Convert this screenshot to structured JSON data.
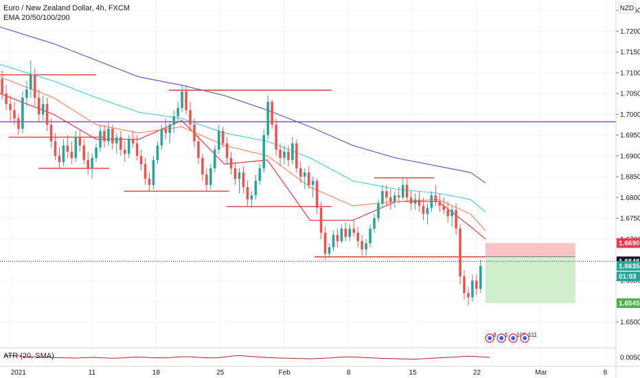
{
  "header": {
    "title": "Euro / New Zealand Dollar, 4h, FXCM",
    "indicator": "EMA 20/50/100/200",
    "atr_label": "ATR (20, SMA)",
    "currency": "NZD"
  },
  "colors": {
    "up": "#26a69a",
    "down": "#ef5350",
    "ema20": "#f23645",
    "ema50": "#ff8a65",
    "ema100": "#4dd0e1",
    "ema200": "#5b5fc7",
    "level": "#e53935",
    "hline": "#7e3fc9",
    "atr": "#b71c1c",
    "stop_zone": "#f9b9bb",
    "target_zone": "#c7ebc3",
    "grid": "#f0f3fa"
  },
  "chart_data": {
    "type": "candlestick",
    "timeframe": "4h",
    "ylim": [
      1.644,
      1.7275
    ],
    "price_ticks": [
      "1.72500",
      "1.72000",
      "1.71500",
      "1.71000",
      "1.70500",
      "1.70000",
      "1.69500",
      "1.69000",
      "1.68500",
      "1.68000",
      "1.67500",
      "1.67000",
      "1.66500",
      "1.66000",
      "1.65500",
      "1.65000"
    ],
    "date_ticks": [
      {
        "label": "2021",
        "t": 0
      },
      {
        "label": "11",
        "t": 38
      },
      {
        "label": "18",
        "t": 68
      },
      {
        "label": "25",
        "t": 98
      },
      {
        "label": "Feb",
        "t": 128
      },
      {
        "label": "8",
        "t": 158
      },
      {
        "label": "15",
        "t": 188
      },
      {
        "label": "22",
        "t": 218
      },
      {
        "label": "Mar",
        "t": 248
      },
      {
        "label": "8",
        "t": 278
      }
    ],
    "t_range": [
      -5,
      283
    ],
    "candles": [
      [
        1.7085,
        1.7105,
        1.7035,
        1.705
      ],
      [
        1.705,
        1.707,
        1.701,
        1.7025
      ],
      [
        1.7025,
        1.7045,
        1.6985,
        1.701
      ],
      [
        1.701,
        1.703,
        1.6975,
        1.699
      ],
      [
        1.699,
        1.7,
        1.695,
        1.6965
      ],
      [
        1.6965,
        1.7055,
        1.6955,
        1.704
      ],
      [
        1.704,
        1.708,
        1.702,
        1.706
      ],
      [
        1.706,
        1.713,
        1.704,
        1.7095
      ],
      [
        1.7095,
        1.711,
        1.702,
        1.704
      ],
      [
        1.704,
        1.706,
        1.698,
        1.7
      ],
      [
        1.7,
        1.7045,
        1.6985,
        1.7025
      ],
      [
        1.7025,
        1.704,
        1.696,
        1.6975
      ],
      [
        1.6975,
        1.699,
        1.692,
        1.6935
      ],
      [
        1.6935,
        1.6955,
        1.689,
        1.69
      ],
      [
        1.69,
        1.692,
        1.687,
        1.6885
      ],
      [
        1.6885,
        1.694,
        1.6875,
        1.6925
      ],
      [
        1.6925,
        1.695,
        1.6895,
        1.691
      ],
      [
        1.691,
        1.6935,
        1.688,
        1.6895
      ],
      [
        1.6895,
        1.696,
        1.6885,
        1.6945
      ],
      [
        1.6945,
        1.6965,
        1.691,
        1.6925
      ],
      [
        1.6925,
        1.694,
        1.688,
        1.689
      ],
      [
        1.689,
        1.691,
        1.6855,
        1.687
      ],
      [
        1.687,
        1.6905,
        1.6845,
        1.6895
      ],
      [
        1.6895,
        1.693,
        1.6885,
        1.692
      ],
      [
        1.692,
        1.6975,
        1.691,
        1.696
      ],
      [
        1.696,
        1.6975,
        1.692,
        1.6935
      ],
      [
        1.6935,
        1.698,
        1.6925,
        1.6965
      ],
      [
        1.6965,
        1.6975,
        1.6915,
        1.693
      ],
      [
        1.693,
        1.6955,
        1.6905,
        1.6945
      ],
      [
        1.6945,
        1.696,
        1.69,
        1.6915
      ],
      [
        1.6915,
        1.6935,
        1.6885,
        1.6905
      ],
      [
        1.6905,
        1.695,
        1.6895,
        1.694
      ],
      [
        1.694,
        1.696,
        1.692,
        1.693
      ],
      [
        1.693,
        1.695,
        1.689,
        1.69
      ],
      [
        1.69,
        1.6915,
        1.6865,
        1.688
      ],
      [
        1.688,
        1.6895,
        1.683,
        1.6845
      ],
      [
        1.6845,
        1.686,
        1.6815,
        1.683
      ],
      [
        1.683,
        1.69,
        1.682,
        1.689
      ],
      [
        1.689,
        1.6935,
        1.688,
        1.6925
      ],
      [
        1.6925,
        1.6975,
        1.6915,
        1.6965
      ],
      [
        1.6965,
        1.699,
        1.694,
        1.6955
      ],
      [
        1.6955,
        1.6985,
        1.693,
        1.6975
      ],
      [
        1.6975,
        1.701,
        1.6955,
        1.6995
      ],
      [
        1.6995,
        1.703,
        1.698,
        1.7015
      ],
      [
        1.7015,
        1.707,
        1.7005,
        1.7055
      ],
      [
        1.7055,
        1.707,
        1.7,
        1.701
      ],
      [
        1.701,
        1.703,
        1.696,
        1.6975
      ],
      [
        1.6975,
        1.699,
        1.692,
        1.6935
      ],
      [
        1.6935,
        1.695,
        1.688,
        1.6895
      ],
      [
        1.6895,
        1.6905,
        1.684,
        1.6855
      ],
      [
        1.6855,
        1.687,
        1.6815,
        1.683
      ],
      [
        1.683,
        1.688,
        1.682,
        1.687
      ],
      [
        1.687,
        1.6925,
        1.686,
        1.6915
      ],
      [
        1.6915,
        1.6975,
        1.6905,
        1.696
      ],
      [
        1.696,
        1.697,
        1.692,
        1.693
      ],
      [
        1.693,
        1.6945,
        1.688,
        1.6895
      ],
      [
        1.6895,
        1.691,
        1.6855,
        1.687
      ],
      [
        1.687,
        1.6885,
        1.683,
        1.6845
      ],
      [
        1.6845,
        1.687,
        1.681,
        1.686
      ],
      [
        1.686,
        1.6875,
        1.681,
        1.6825
      ],
      [
        1.6825,
        1.684,
        1.678,
        1.6795
      ],
      [
        1.6795,
        1.6815,
        1.6775,
        1.6805
      ],
      [
        1.6805,
        1.6855,
        1.6795,
        1.684
      ],
      [
        1.684,
        1.688,
        1.683,
        1.687
      ],
      [
        1.687,
        1.6965,
        1.686,
        1.695
      ],
      [
        1.695,
        1.7045,
        1.694,
        1.703
      ],
      [
        1.703,
        1.7035,
        1.6965,
        1.6975
      ],
      [
        1.6975,
        1.699,
        1.69,
        1.6915
      ],
      [
        1.6915,
        1.693,
        1.6875,
        1.6895
      ],
      [
        1.6895,
        1.6925,
        1.688,
        1.691
      ],
      [
        1.691,
        1.6925,
        1.6875,
        1.689
      ],
      [
        1.689,
        1.6945,
        1.688,
        1.693
      ],
      [
        1.693,
        1.694,
        1.686,
        1.687
      ],
      [
        1.687,
        1.6885,
        1.6835,
        1.685
      ],
      [
        1.685,
        1.687,
        1.682,
        1.686
      ],
      [
        1.686,
        1.6875,
        1.682,
        1.683
      ],
      [
        1.683,
        1.685,
        1.68,
        1.684
      ],
      [
        1.684,
        1.6845,
        1.676,
        1.6775
      ],
      [
        1.6775,
        1.679,
        1.67,
        1.6715
      ],
      [
        1.6715,
        1.673,
        1.665,
        1.6665
      ],
      [
        1.6665,
        1.669,
        1.6655,
        1.668
      ],
      [
        1.668,
        1.672,
        1.667,
        1.671
      ],
      [
        1.671,
        1.6725,
        1.668,
        1.6695
      ],
      [
        1.6695,
        1.6735,
        1.669,
        1.6725
      ],
      [
        1.6725,
        1.674,
        1.6695,
        1.6705
      ],
      [
        1.6705,
        1.6735,
        1.6695,
        1.6725
      ],
      [
        1.6725,
        1.6745,
        1.6705,
        1.6715
      ],
      [
        1.6715,
        1.673,
        1.668,
        1.6695
      ],
      [
        1.6695,
        1.671,
        1.666,
        1.6675
      ],
      [
        1.6675,
        1.67,
        1.666,
        1.669
      ],
      [
        1.669,
        1.6735,
        1.668,
        1.6725
      ],
      [
        1.6725,
        1.676,
        1.6715,
        1.675
      ],
      [
        1.675,
        1.6795,
        1.674,
        1.6785
      ],
      [
        1.6785,
        1.683,
        1.6775,
        1.6815
      ],
      [
        1.6815,
        1.683,
        1.678,
        1.68
      ],
      [
        1.68,
        1.682,
        1.677,
        1.679
      ],
      [
        1.679,
        1.6815,
        1.6775,
        1.6805
      ],
      [
        1.6805,
        1.6825,
        1.6785,
        1.68
      ],
      [
        1.68,
        1.6845,
        1.6795,
        1.683
      ],
      [
        1.683,
        1.6845,
        1.679,
        1.68
      ],
      [
        1.68,
        1.6815,
        1.677,
        1.6785
      ],
      [
        1.6785,
        1.681,
        1.677,
        1.6795
      ],
      [
        1.6795,
        1.6815,
        1.6765,
        1.678
      ],
      [
        1.678,
        1.68,
        1.6745,
        1.676
      ],
      [
        1.676,
        1.6785,
        1.6735,
        1.6775
      ],
      [
        1.6775,
        1.6815,
        1.6765,
        1.6805
      ],
      [
        1.6805,
        1.683,
        1.678,
        1.679
      ],
      [
        1.679,
        1.681,
        1.6765,
        1.678
      ],
      [
        1.678,
        1.68,
        1.676,
        1.677
      ],
      [
        1.677,
        1.679,
        1.674,
        1.6755
      ],
      [
        1.6755,
        1.678,
        1.673,
        1.677
      ],
      [
        1.677,
        1.6785,
        1.671,
        1.6725
      ],
      [
        1.6725,
        1.6735,
        1.659,
        1.661
      ],
      [
        1.661,
        1.6625,
        1.6555,
        1.657
      ],
      [
        1.657,
        1.6585,
        1.654,
        1.656
      ],
      [
        1.656,
        1.6615,
        1.655,
        1.66
      ],
      [
        1.66,
        1.6615,
        1.6565,
        1.658
      ],
      [
        1.658,
        1.665,
        1.657,
        1.6635
      ]
    ],
    "candle_t_start": -4,
    "candle_t_step": 1.912,
    "ema": [
      {
        "key": "ema20",
        "t": [
          -5,
          20,
          40,
          60,
          80,
          100,
          120,
          140,
          160,
          180,
          200,
          215,
          222
        ],
        "v": [
          1.705,
          1.7,
          1.694,
          1.694,
          1.6985,
          1.688,
          1.689,
          1.6745,
          1.6745,
          1.679,
          1.679,
          1.673,
          1.67
        ]
      },
      {
        "key": "ema50",
        "t": [
          -5,
          20,
          40,
          60,
          80,
          100,
          120,
          140,
          160,
          180,
          200,
          215,
          222
        ],
        "v": [
          1.709,
          1.704,
          1.6975,
          1.6955,
          1.697,
          1.6925,
          1.69,
          1.6825,
          1.678,
          1.679,
          1.6795,
          1.676,
          1.672
        ]
      },
      {
        "key": "ema100",
        "t": [
          -5,
          20,
          40,
          60,
          80,
          100,
          120,
          140,
          160,
          180,
          200,
          215,
          222
        ],
        "v": [
          1.712,
          1.708,
          1.704,
          1.7005,
          1.699,
          1.6955,
          1.6935,
          1.6895,
          1.684,
          1.682,
          1.681,
          1.6795,
          1.6765
        ]
      },
      {
        "key": "ema200",
        "t": [
          -5,
          20,
          40,
          60,
          80,
          100,
          120,
          140,
          160,
          180,
          200,
          215,
          222
        ],
        "v": [
          1.721,
          1.717,
          1.713,
          1.709,
          1.707,
          1.7045,
          1.701,
          1.697,
          1.6925,
          1.6895,
          1.6875,
          1.686,
          1.6835
        ]
      }
    ],
    "levels": [
      {
        "t0": -5,
        "t1": 40,
        "price": 1.7095
      },
      {
        "t0": -1,
        "t1": 44,
        "price": 1.6945
      },
      {
        "t0": 13,
        "t1": 46,
        "price": 1.687
      },
      {
        "t0": 53,
        "t1": 102,
        "price": 1.6815
      },
      {
        "t0": 74,
        "t1": 150,
        "price": 1.7058
      },
      {
        "t0": 101,
        "t1": 150,
        "price": 1.6778
      },
      {
        "t0": 142,
        "t1": 222,
        "price": 1.6657
      },
      {
        "t0": 170,
        "t1": 198,
        "price": 1.6847
      }
    ],
    "horizontal_line": 1.6982,
    "current_price_line": 1.66463,
    "position": {
      "t0": 222,
      "t1": 264,
      "entry": 1.66574,
      "stop": 1.66903,
      "target": 1.65456
    },
    "price_labels": [
      {
        "text": "1.66903",
        "price": 1.66903,
        "color": "#f23645"
      },
      {
        "text": "1.66463",
        "price": 1.66463,
        "color": "#131722"
      },
      {
        "text": "1.66352",
        "price": 1.66352,
        "color": "#26a69a"
      },
      {
        "text": "01:03",
        "price": 1.661,
        "color": "#26a69a"
      },
      {
        "text": "1.65456",
        "price": 1.65456,
        "color": "#4caf50"
      }
    ],
    "event_icons": [
      "8",
      "5",
      "102",
      "511"
    ],
    "atr": {
      "ylim": [
        0.0,
        0.01
      ],
      "tick": "0.00500",
      "values": [
        0.0062,
        0.006,
        0.0058,
        0.0055,
        0.0053,
        0.0052,
        0.005,
        0.0049,
        0.0048,
        0.0047,
        0.0046,
        0.0047,
        0.0049,
        0.005,
        0.0048,
        0.0046,
        0.0045,
        0.0047,
        0.005,
        0.0052,
        0.0051,
        0.0049,
        0.0048,
        0.0047,
        0.0049,
        0.0052,
        0.0054,
        0.0053,
        0.005,
        0.0048,
        0.0047,
        0.0049,
        0.0053,
        0.0058,
        0.006,
        0.0057,
        0.0054,
        0.0051,
        0.0049,
        0.0047,
        0.0046,
        0.0045,
        0.0044,
        0.0043,
        0.0042,
        0.0043,
        0.0045,
        0.0047,
        0.005,
        0.0052,
        0.0053,
        0.0051,
        0.0049,
        0.0047,
        0.0045,
        0.0044,
        0.0043,
        0.0042,
        0.0041,
        0.004,
        0.0042,
        0.0044,
        0.0046,
        0.0048,
        0.005,
        0.0052,
        0.0055,
        0.0057,
        0.0055,
        0.0052,
        0.005
      ]
    }
  }
}
